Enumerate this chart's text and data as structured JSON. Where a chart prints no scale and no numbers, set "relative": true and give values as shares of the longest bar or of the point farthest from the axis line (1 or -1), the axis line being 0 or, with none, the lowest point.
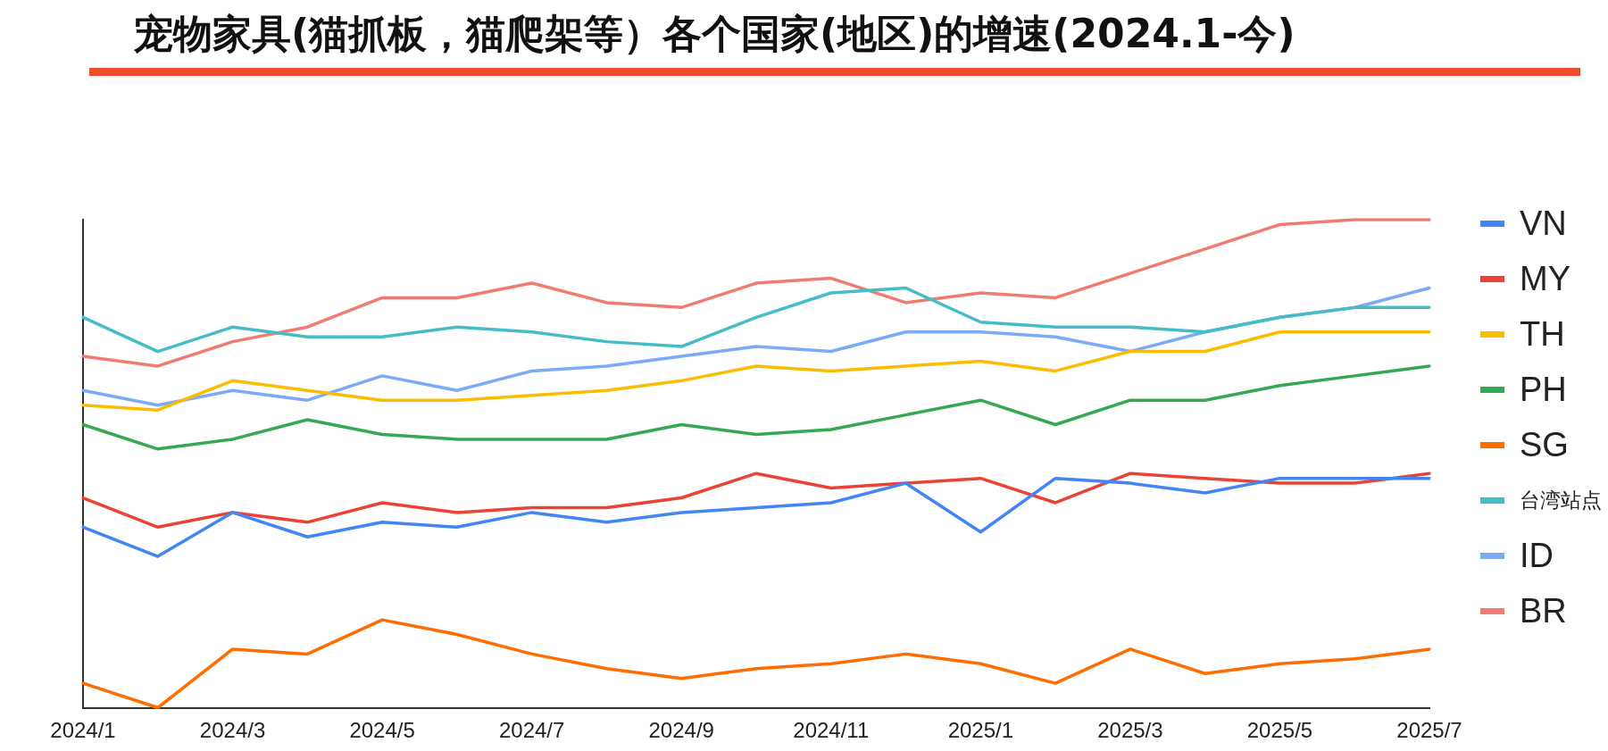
{
  "chart_data": {
    "type": "line",
    "title": "宠物家具(猫抓板，猫爬架等）各个国家(地区)的增速(2024.1-今)",
    "relative": true,
    "legend": "right",
    "marker": "none",
    "categories": [
      "2024/1",
      null,
      "2024/3",
      null,
      "2024/5",
      null,
      "2024/7",
      null,
      "2024/9",
      null,
      "2024/11",
      null,
      "2025/1",
      null,
      "2025/3",
      null,
      "2025/5",
      null,
      "2025/7"
    ],
    "series": [
      {
        "name": "VN",
        "color": "#4285f4",
        "values": [
          0.37,
          0.31,
          0.4,
          0.35,
          0.38,
          0.37,
          0.4,
          0.38,
          0.4,
          0.41,
          0.42,
          0.46,
          0.36,
          0.47,
          0.46,
          0.44,
          0.47,
          0.47,
          0.47
        ]
      },
      {
        "name": "MY",
        "color": "#ea4335",
        "values": [
          0.43,
          0.37,
          0.4,
          0.38,
          0.42,
          0.4,
          0.41,
          0.41,
          0.43,
          0.48,
          0.45,
          0.46,
          0.47,
          0.42,
          0.48,
          0.47,
          0.46,
          0.46,
          0.48
        ]
      },
      {
        "name": "TH",
        "color": "#fbbc04",
        "values": [
          0.62,
          0.61,
          0.67,
          0.65,
          0.63,
          0.63,
          0.64,
          0.65,
          0.67,
          0.7,
          0.69,
          0.7,
          0.71,
          0.69,
          0.73,
          0.73,
          0.77,
          0.77,
          0.77
        ]
      },
      {
        "name": "PH",
        "color": "#34a853",
        "values": [
          0.58,
          0.53,
          0.55,
          0.59,
          0.56,
          0.55,
          0.55,
          0.55,
          0.58,
          0.56,
          0.57,
          0.6,
          0.63,
          0.58,
          0.63,
          0.63,
          0.66,
          0.68,
          0.7
        ]
      },
      {
        "name": "SG",
        "color": "#ff6d01",
        "values": [
          0.05,
          0,
          0.12,
          0.11,
          0.18,
          0.15,
          0.11,
          0.08,
          0.06,
          0.08,
          0.09,
          0.11,
          0.09,
          0.05,
          0.12,
          0.07,
          0.09,
          0.1,
          0.12
        ]
      },
      {
        "name": "台湾站点",
        "color": "#46bdc6",
        "values": [
          0.8,
          0.73,
          0.78,
          0.76,
          0.76,
          0.78,
          0.77,
          0.75,
          0.74,
          0.8,
          0.85,
          0.86,
          0.79,
          0.78,
          0.78,
          0.77,
          0.8,
          0.82,
          0.82
        ]
      },
      {
        "name": "ID",
        "color": "#7baaf7",
        "values": [
          0.65,
          0.62,
          0.65,
          0.63,
          0.68,
          0.65,
          0.69,
          0.7,
          0.72,
          0.74,
          0.73,
          0.77,
          0.77,
          0.76,
          0.73,
          0.77,
          0.8,
          0.82,
          0.86
        ]
      },
      {
        "name": "BR",
        "color": "#f07b72",
        "values": [
          0.72,
          0.7,
          0.75,
          0.78,
          0.84,
          0.84,
          0.87,
          0.83,
          0.82,
          0.87,
          0.88,
          0.83,
          0.85,
          0.84,
          0.89,
          0.94,
          0.99,
          1,
          1
        ]
      }
    ]
  }
}
